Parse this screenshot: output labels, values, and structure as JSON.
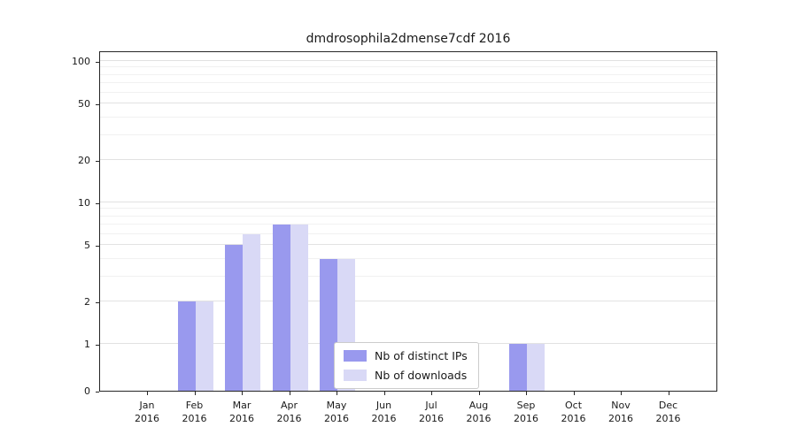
{
  "title": "dmdrosophila2dmense7cdf 2016",
  "chart_data": {
    "type": "bar",
    "title": "dmdrosophila2dmense7cdf 2016",
    "categories": [
      "Jan 2016",
      "Feb 2016",
      "Mar 2016",
      "Apr 2016",
      "May 2016",
      "Jun 2016",
      "Jul 2016",
      "Aug 2016",
      "Sep 2016",
      "Oct 2016",
      "Nov 2016",
      "Dec 2016"
    ],
    "series": [
      {
        "name": "Nb of distinct IPs",
        "color": "#9999ee",
        "values": [
          0,
          2,
          5,
          7,
          4,
          0,
          0,
          0,
          1,
          0,
          0,
          0
        ]
      },
      {
        "name": "Nb of downloads",
        "color": "#d9d9f6",
        "values": [
          0,
          2,
          6,
          7,
          4,
          0,
          0,
          0,
          1,
          0,
          0,
          0
        ]
      }
    ],
    "xlabel": "",
    "ylabel": "",
    "yscale": "log-with-zero",
    "yticks": [
      0,
      1,
      2,
      5,
      10,
      20,
      50,
      100
    ],
    "yticks_minor": [
      3,
      4,
      6,
      7,
      8,
      9,
      30,
      40,
      60,
      70,
      80,
      90
    ],
    "ylim": [
      0,
      110
    ],
    "grid": true,
    "legend_position": "inside-lower-center"
  },
  "colors": {
    "axis": "#262626",
    "grid_major": "#e2e2e2",
    "grid_minor": "#f1f1f1",
    "background": "#ffffff",
    "legend_border": "#cccccc"
  }
}
